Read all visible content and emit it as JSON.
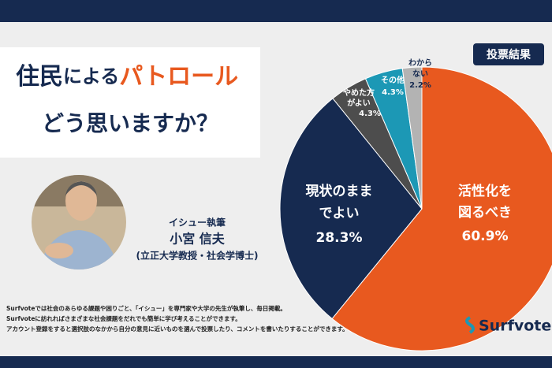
{
  "header": {
    "title_parts": [
      "住民",
      "による",
      "パトロール"
    ],
    "question": "どう思いますか？"
  },
  "badge": "投票結果",
  "author": {
    "role": "イシュー執筆",
    "name": "小宮 信夫",
    "affiliation": "(立正大学教授・社会学博士)"
  },
  "footer": [
    "Surfvoteでは社会のあらゆる課題や困りごと、「イシュー」を専門家や大学の先生が執筆し、毎日掲載。",
    "Surfvoteに訪れればさまざまな社会課題をだれでも簡単に学び考えることができます。",
    "アカウント登録をすると選択肢のなかから自分の意見に近いものを選んで投票したり、コメントを書いたりすることができます。"
  ],
  "logo": "Surfvote",
  "chart_data": {
    "type": "pie",
    "categories": [
      [
        "活性化を",
        "図るべき"
      ],
      [
        "現状のまま",
        "でよい"
      ],
      [
        "やめた方",
        "がよい"
      ],
      [
        "その他"
      ],
      [
        "わから",
        "ない"
      ]
    ],
    "values": [
      60.9,
      28.3,
      4.3,
      4.3,
      2.2
    ],
    "value_labels": [
      "60.9%",
      "28.3%",
      "4.3%",
      "4.3%",
      "2.2%"
    ],
    "colors": [
      "#e8591f",
      "#162a50",
      "#4d4d4d",
      "#1c98b5",
      "#b3b3b3"
    ]
  }
}
